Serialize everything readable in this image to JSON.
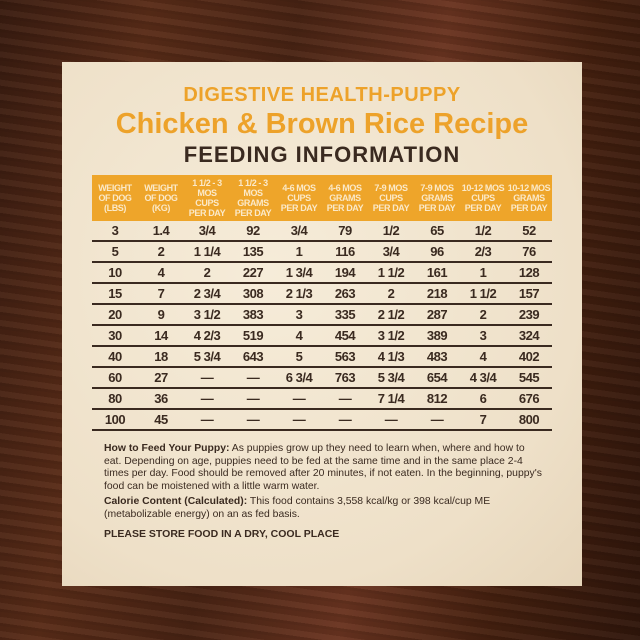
{
  "header": {
    "subtitle": "DIGESTIVE HEALTH-PUPPY",
    "title": "Chicken & Brown Rice Recipe",
    "section": "FEEDING INFORMATION"
  },
  "table": {
    "columns": [
      "WEIGHT\nOF DOG\n(LBS)",
      "WEIGHT\nOF DOG\n(KG)",
      "1 1/2 - 3 MOS\nCUPS\nPER DAY",
      "1 1/2 - 3 MOS\nGRAMS\nPER DAY",
      "4-6 MOS\nCUPS\nPER DAY",
      "4-6 MOS\nGRAMS\nPER DAY",
      "7-9 MOS\nCUPS\nPER DAY",
      "7-9 MOS\nGRAMS\nPER DAY",
      "10-12 MOS\nCUPS\nPER DAY",
      "10-12 MOS\nGRAMS\nPER DAY"
    ],
    "rows": [
      [
        "3",
        "1.4",
        "3/4",
        "92",
        "3/4",
        "79",
        "1/2",
        "65",
        "1/2",
        "52"
      ],
      [
        "5",
        "2",
        "1 1/4",
        "135",
        "1",
        "116",
        "3/4",
        "96",
        "2/3",
        "76"
      ],
      [
        "10",
        "4",
        "2",
        "227",
        "1 3/4",
        "194",
        "1 1/2",
        "161",
        "1",
        "128"
      ],
      [
        "15",
        "7",
        "2 3/4",
        "308",
        "2 1/3",
        "263",
        "2",
        "218",
        "1 1/2",
        "157"
      ],
      [
        "20",
        "9",
        "3 1/2",
        "383",
        "3",
        "335",
        "2 1/2",
        "287",
        "2",
        "239"
      ],
      [
        "30",
        "14",
        "4 2/3",
        "519",
        "4",
        "454",
        "3 1/2",
        "389",
        "3",
        "324"
      ],
      [
        "40",
        "18",
        "5 3/4",
        "643",
        "5",
        "563",
        "4 1/3",
        "483",
        "4",
        "402"
      ],
      [
        "60",
        "27",
        "—",
        "—",
        "6 3/4",
        "763",
        "5 3/4",
        "654",
        "4 3/4",
        "545"
      ],
      [
        "80",
        "36",
        "—",
        "—",
        "—",
        "—",
        "7 1/4",
        "812",
        "6",
        "676"
      ],
      [
        "100",
        "45",
        "—",
        "—",
        "—",
        "—",
        "—",
        "—",
        "7",
        "800"
      ]
    ]
  },
  "notes": {
    "feed_label": "How to Feed Your Puppy:",
    "feed_text": " As puppies grow up they need to learn when, where and how to eat. Depending on age, puppies need to be fed at the same time and in the same place 2-4 times per day. Food should be removed after 20 minutes, if not eaten. In the beginning, puppy's food can be moistened with a little warm water.",
    "calorie_label": "Calorie Content (Calculated):",
    "calorie_text": " This food contains 3,558 kcal/kg or 398 kcal/cup ME (metabolizable energy) on an as fed basis.",
    "storage": "PLEASE STORE FOOD IN A DRY, COOL PLACE"
  },
  "colors": {
    "accent": "#eea52a",
    "text": "#3a2a20",
    "card": "#f1e5d0"
  }
}
